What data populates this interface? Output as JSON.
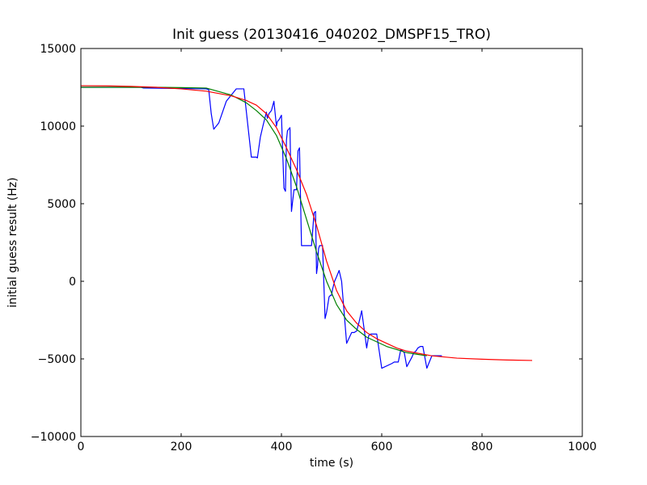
{
  "chart_data": {
    "type": "line",
    "title": "Init guess (20130416_040202_DMSPF15_TRO)",
    "xlabel": "time (s)",
    "ylabel": "initial guess result (Hz)",
    "xlim": [
      0,
      1000
    ],
    "ylim": [
      -10000,
      15000
    ],
    "xticks": [
      0,
      200,
      400,
      600,
      800,
      1000
    ],
    "yticks": [
      -10000,
      -5000,
      0,
      5000,
      10000,
      15000
    ],
    "xtick_labels": [
      "0",
      "200",
      "400",
      "600",
      "800",
      "1000"
    ],
    "ytick_labels": [
      "−10000",
      "−5000",
      "0",
      "5000",
      "10000",
      "15000"
    ],
    "grid": false,
    "series": [
      {
        "color": "#0000ff",
        "x": [
          0,
          120,
          125,
          250,
          255,
          260,
          265,
          270,
          275,
          290,
          310,
          320,
          325,
          340,
          350,
          352,
          358,
          363,
          370,
          372,
          375,
          380,
          385,
          390,
          392,
          395,
          400,
          405,
          408,
          410,
          412,
          417,
          420,
          425,
          430,
          433,
          436,
          440,
          445,
          450,
          455,
          460,
          465,
          468,
          470,
          472,
          474,
          476,
          478,
          480,
          482,
          487,
          490,
          495,
          498,
          500,
          502,
          506,
          510,
          515,
          520,
          530,
          540,
          545,
          550,
          555,
          560,
          570,
          574,
          578,
          580,
          582,
          590,
          600,
          620,
          625,
          630,
          633,
          638,
          645,
          650,
          655,
          660,
          664,
          668,
          672,
          677,
          682,
          690,
          700,
          713,
          716,
          718,
          720
        ],
        "values": [
          12500,
          12500,
          12450,
          12400,
          12350,
          10800,
          9800,
          10000,
          10200,
          11600,
          12400,
          12400,
          12400,
          8000,
          8000,
          7950,
          9300,
          10000,
          10900,
          10500,
          10800,
          11000,
          11600,
          10000,
          10300,
          10400,
          10700,
          6000,
          5800,
          9100,
          9700,
          9900,
          4500,
          5900,
          5900,
          8400,
          8600,
          2300,
          2300,
          2300,
          2300,
          2300,
          4400,
          4500,
          500,
          1000,
          2100,
          2300,
          2300,
          2300,
          2300,
          -2400,
          -2000,
          -1000,
          -900,
          -900,
          -500,
          0,
          300,
          700,
          0,
          -4000,
          -3300,
          -3300,
          -3200,
          -2600,
          -1900,
          -4300,
          -3500,
          -3400,
          -3400,
          -3400,
          -3400,
          -5600,
          -5300,
          -5200,
          -5200,
          -5200,
          -4400,
          -4600,
          -5500,
          -5200,
          -4900,
          -4600,
          -4500,
          -4300,
          -4200,
          -4200,
          -5600,
          -4800,
          -4800,
          -4800,
          -4800,
          -4800
        ]
      },
      {
        "color": "#008000",
        "x": [
          0,
          50,
          100,
          150,
          200,
          250,
          300,
          330,
          350,
          370,
          390,
          410,
          430,
          450,
          470,
          490,
          510,
          530,
          550,
          570,
          590,
          610,
          630,
          650,
          670,
          690
        ],
        "values": [
          12500,
          12500,
          12500,
          12500,
          12480,
          12450,
          12000,
          11500,
          11000,
          10400,
          9400,
          7900,
          6100,
          4000,
          1900,
          0,
          -1500,
          -2500,
          -3100,
          -3600,
          -3900,
          -4200,
          -4400,
          -4600,
          -4700,
          -4800
        ]
      },
      {
        "color": "#ff0000",
        "x": [
          0,
          50,
          100,
          150,
          200,
          250,
          300,
          330,
          350,
          370,
          390,
          410,
          430,
          450,
          470,
          490,
          510,
          530,
          550,
          570,
          590,
          610,
          630,
          650,
          700,
          750,
          800,
          850,
          900
        ],
        "values": [
          12600,
          12590,
          12560,
          12500,
          12400,
          12250,
          11950,
          11650,
          11350,
          10800,
          9900,
          8600,
          7200,
          5600,
          3600,
          1300,
          -600,
          -1900,
          -2700,
          -3300,
          -3700,
          -4000,
          -4300,
          -4500,
          -4800,
          -4950,
          -5020,
          -5070,
          -5100
        ]
      }
    ]
  }
}
